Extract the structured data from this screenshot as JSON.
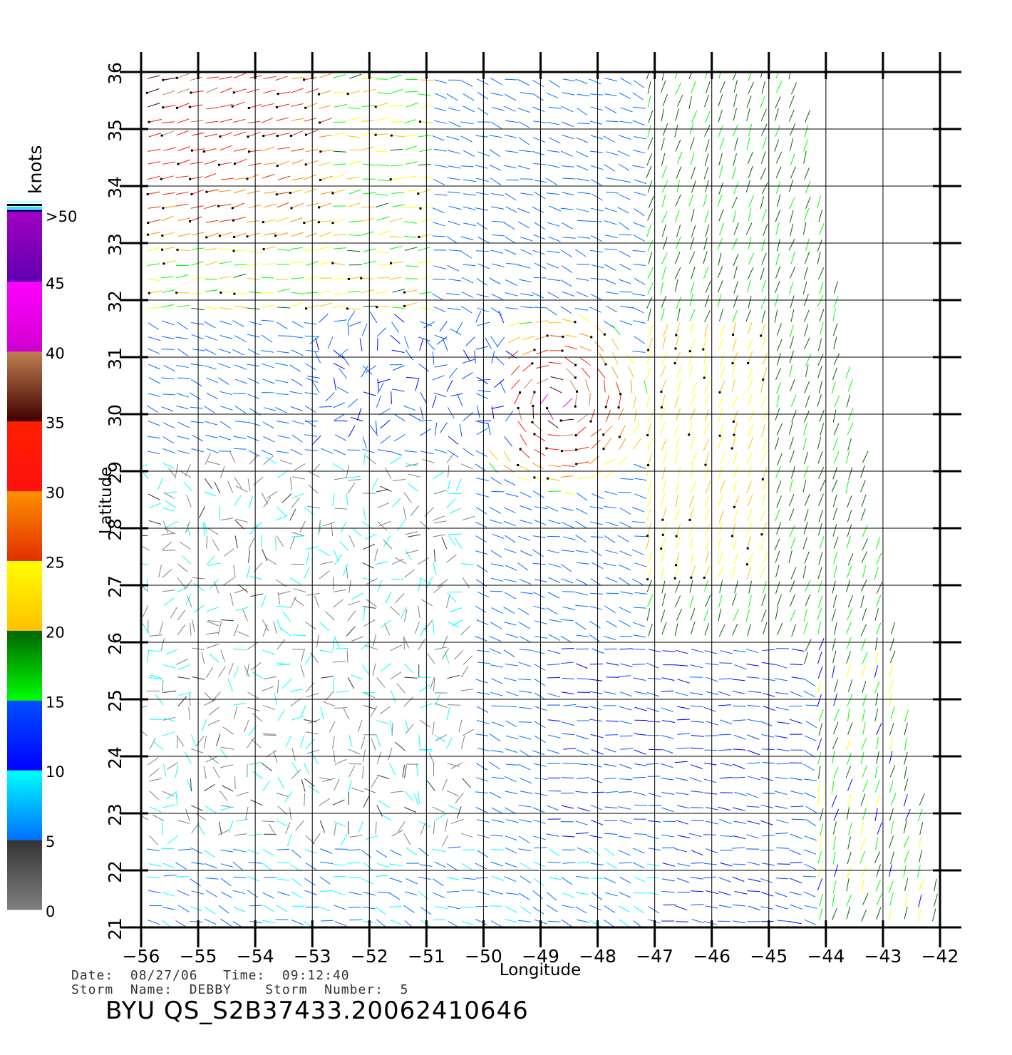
{
  "chart_data": {
    "type": "wind-vector-map",
    "xlabel": "Longitude",
    "ylabel": "Latitude",
    "xlim": [
      -56,
      -42
    ],
    "ylim": [
      21,
      36
    ],
    "x_ticks": [
      -56,
      -55,
      -54,
      -53,
      -52,
      -51,
      -50,
      -49,
      -48,
      -47,
      -46,
      -45,
      -44,
      -43,
      -42
    ],
    "x_tick_labels": [
      "−56",
      "−55",
      "−54",
      "−53",
      "−52",
      "−51",
      "−50",
      "−49",
      "−48",
      "−47",
      "−46",
      "−45",
      "−44",
      "−43",
      "−42"
    ],
    "y_ticks": [
      21,
      22,
      23,
      24,
      25,
      26,
      27,
      28,
      29,
      30,
      31,
      32,
      33,
      34,
      35,
      36
    ],
    "y_tick_labels": [
      "21",
      "22",
      "23",
      "24",
      "25",
      "26",
      "27",
      "28",
      "29",
      "30",
      "31",
      "32",
      "33",
      "34",
      "35",
      "36"
    ],
    "grid": true,
    "swath_right_edge": [
      [
        -44.5,
        36
      ],
      [
        -42,
        21
      ]
    ],
    "colorbar": {
      "unit_label": "knots",
      "tick_labels": [
        "0",
        "5",
        "10",
        "15",
        "20",
        "25",
        "30",
        "35",
        "40",
        "45",
        ">50"
      ],
      "bins": [
        {
          "from": 0,
          "to": 5,
          "top": "#333333",
          "bottom": "#808080"
        },
        {
          "from": 5,
          "to": 10,
          "top": "#00ffff",
          "bottom": "#0070ff"
        },
        {
          "from": 10,
          "to": 15,
          "top": "#0050ff",
          "bottom": "#0000ff"
        },
        {
          "from": 15,
          "to": 20,
          "top": "#006400",
          "bottom": "#00ff00"
        },
        {
          "from": 20,
          "to": 25,
          "top": "#ffff00",
          "bottom": "#ffc000"
        },
        {
          "from": 25,
          "to": 30,
          "top": "#ff9000",
          "bottom": "#e03000"
        },
        {
          "from": 30,
          "to": 35,
          "top": "#ff2000",
          "bottom": "#ff1010"
        },
        {
          "from": 35,
          "to": 40,
          "top": "#c08050",
          "bottom": "#400000"
        },
        {
          "from": 40,
          "to": 45,
          "top": "#ff00ff",
          "bottom": "#d000d0"
        },
        {
          "from": 45,
          "to": 50,
          "top": "#a000c0",
          "bottom": "#6000b0"
        }
      ],
      "cap_colors": [
        "#000080",
        "#00ffff",
        "#000000",
        "#c0ffff"
      ]
    },
    "wind_field": {
      "grid_spacing_deg": 0.25,
      "regions": [
        {
          "name": "light-winds-southwest",
          "lon": [
            -56,
            -50
          ],
          "lat": [
            22,
            29
          ],
          "speed_knots": [
            2,
            6
          ],
          "direction": "variable"
        },
        {
          "name": "northwest-jet",
          "lon": [
            -56,
            -53
          ],
          "lat": [
            33,
            36
          ],
          "speed_knots": [
            22,
            40
          ],
          "direction": "from southwest"
        },
        {
          "name": "storm-core",
          "lon": [
            -49.8,
            -47.5
          ],
          "lat": [
            29,
            31.8
          ],
          "speed_knots": [
            20,
            40
          ],
          "direction": "cyclonic"
        },
        {
          "name": "east-green-band",
          "lon": [
            -47,
            -44
          ],
          "lat": [
            26,
            36
          ],
          "speed_knots": [
            14,
            20
          ],
          "direction": "from south"
        },
        {
          "name": "east-yellow-band",
          "lon": [
            -47,
            -45
          ],
          "lat": [
            27,
            31
          ],
          "speed_knots": [
            20,
            25
          ],
          "direction": "from south"
        },
        {
          "name": "southeast-blue",
          "lon": [
            -49,
            -43
          ],
          "lat": [
            21,
            26
          ],
          "speed_knots": [
            8,
            14
          ],
          "direction": "from east"
        }
      ]
    }
  },
  "footer": {
    "date_line": "Date:  08/27/06   Time:  09:12:40",
    "storm_line": "Storm  Name:  DEBBY    Storm  Number:  5",
    "file_id": "BYU  QS_S2B37433.20062410646"
  }
}
